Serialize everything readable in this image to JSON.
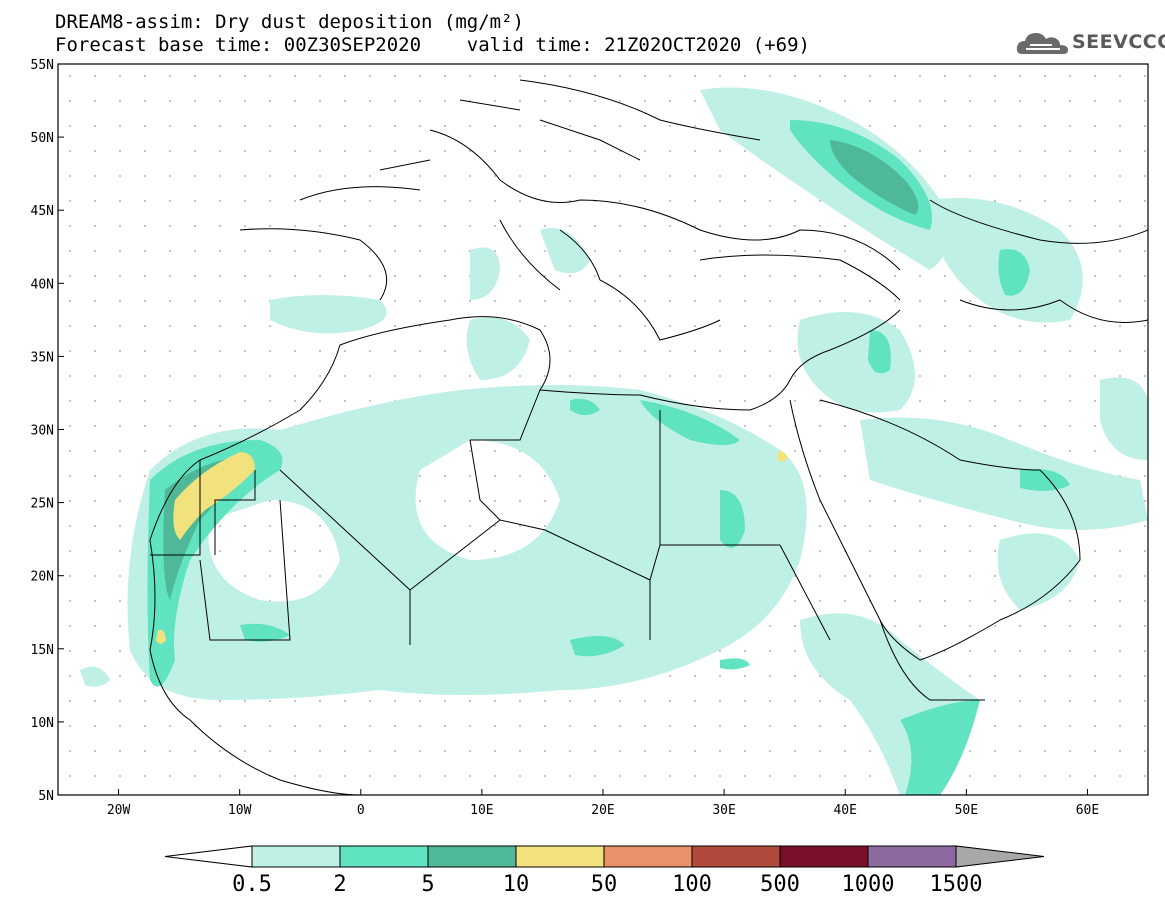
{
  "title": {
    "line1": "DREAM8-assim: Dry dust deposition (mg/m²)",
    "line2": "Forecast base time: 00Z30SEP2020    valid time: 21Z02OCT2020 (+69)"
  },
  "logo": {
    "text": "SEEVCCC",
    "icon": "cloud-icon"
  },
  "map": {
    "lon_range": [
      -25,
      65
    ],
    "lat_range": [
      5,
      55
    ],
    "lat_ticks": [
      "55N",
      "50N",
      "45N",
      "40N",
      "35N",
      "30N",
      "25N",
      "20N",
      "15N",
      "10N",
      "5N"
    ],
    "lon_ticks": [
      "20W",
      "10W",
      "0",
      "10E",
      "20E",
      "30E",
      "40E",
      "50E",
      "60E"
    ]
  },
  "colorbar": {
    "colors": [
      "#bff0e6",
      "#5fe3c0",
      "#4fb898",
      "#f1e27d",
      "#e8916a",
      "#b04a3c",
      "#7a0f2a",
      "#8c6aa0",
      "#a8a8a8"
    ],
    "labels": [
      "0.5",
      "2",
      "5",
      "10",
      "50",
      "100",
      "500",
      "1000",
      "1500"
    ]
  }
}
